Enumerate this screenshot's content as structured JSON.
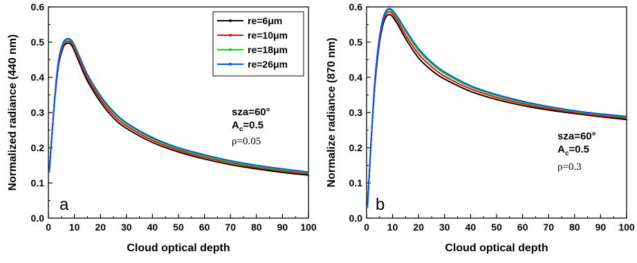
{
  "chart_data": [
    {
      "type": "line",
      "panel": "a",
      "xlabel": "Cloud optical depth",
      "ylabel": "Normalized radiance (440 nm)",
      "xlim": [
        0,
        100
      ],
      "ylim": [
        0,
        0.6
      ],
      "xticks": [
        "0",
        "10",
        "20",
        "30",
        "40",
        "50",
        "60",
        "70",
        "80",
        "90",
        "100"
      ],
      "yticks": [
        "0.0",
        "0.1",
        "0.2",
        "0.3",
        "0.4",
        "0.5",
        "0.6"
      ],
      "annotations": {
        "sza": "sza=60°",
        "ac_main": "A",
        "ac_sub": "c",
        "ac_val": "=0.5",
        "rho": "ρ=0.05"
      },
      "legend": {
        "position": "top-right",
        "show": true
      },
      "series": [
        {
          "name": "re=6μm",
          "color": "#000000",
          "x": [
            0.3,
            1,
            2,
            3,
            4,
            5,
            6,
            7,
            8,
            9,
            10,
            12,
            15,
            20,
            25,
            30,
            40,
            50,
            60,
            70,
            80,
            90,
            100
          ],
          "y": [
            0.13,
            0.2,
            0.3,
            0.38,
            0.44,
            0.47,
            0.49,
            0.496,
            0.497,
            0.49,
            0.475,
            0.44,
            0.39,
            0.33,
            0.285,
            0.255,
            0.215,
            0.188,
            0.168,
            0.152,
            0.14,
            0.13,
            0.122
          ]
        },
        {
          "name": "re=10μm",
          "color": "#ff0000",
          "x": [
            0.3,
            1,
            2,
            3,
            4,
            5,
            6,
            7,
            8,
            9,
            10,
            12,
            15,
            20,
            25,
            30,
            40,
            50,
            60,
            70,
            80,
            90,
            100
          ],
          "y": [
            0.13,
            0.2,
            0.3,
            0.385,
            0.445,
            0.477,
            0.495,
            0.501,
            0.502,
            0.496,
            0.482,
            0.448,
            0.398,
            0.338,
            0.293,
            0.262,
            0.221,
            0.193,
            0.173,
            0.157,
            0.144,
            0.134,
            0.126
          ]
        },
        {
          "name": "re=18μm",
          "color": "#00dd00",
          "x": [
            0.3,
            1,
            2,
            3,
            4,
            5,
            6,
            7,
            8,
            9,
            10,
            12,
            15,
            20,
            25,
            30,
            40,
            50,
            60,
            70,
            80,
            90,
            100
          ],
          "y": [
            0.13,
            0.2,
            0.3,
            0.39,
            0.45,
            0.482,
            0.5,
            0.506,
            0.507,
            0.501,
            0.488,
            0.455,
            0.405,
            0.345,
            0.3,
            0.268,
            0.226,
            0.197,
            0.177,
            0.16,
            0.147,
            0.137,
            0.129
          ]
        },
        {
          "name": "re=26μm",
          "color": "#0050ff",
          "x": [
            0.3,
            1,
            2,
            3,
            4,
            5,
            6,
            7,
            8,
            9,
            10,
            12,
            15,
            20,
            25,
            30,
            40,
            50,
            60,
            70,
            80,
            90,
            100
          ],
          "y": [
            0.13,
            0.2,
            0.3,
            0.39,
            0.452,
            0.485,
            0.503,
            0.509,
            0.51,
            0.504,
            0.491,
            0.458,
            0.408,
            0.348,
            0.303,
            0.271,
            0.229,
            0.2,
            0.18,
            0.163,
            0.15,
            0.14,
            0.131
          ]
        }
      ]
    },
    {
      "type": "line",
      "panel": "b",
      "xlabel": "Cloud optical depth",
      "ylabel": "Normalize radiance (870 nm)",
      "xlim": [
        0,
        100
      ],
      "ylim": [
        0,
        0.6
      ],
      "xticks": [
        "0",
        "10",
        "20",
        "30",
        "40",
        "50",
        "60",
        "70",
        "80",
        "90",
        "100"
      ],
      "yticks": [
        "0.0",
        "0.1",
        "0.2",
        "0.3",
        "0.4",
        "0.5",
        "0.6"
      ],
      "annotations": {
        "sza": "sza=60°",
        "ac_main": "A",
        "ac_sub": "c",
        "ac_val": "=0.5",
        "rho": "ρ=0.3"
      },
      "legend": {
        "show": false
      },
      "series": [
        {
          "name": "re=6μm",
          "color": "#000000",
          "x": [
            0.3,
            1,
            2,
            3,
            4,
            5,
            6,
            7,
            8,
            9,
            10,
            12,
            15,
            20,
            25,
            30,
            40,
            50,
            60,
            70,
            80,
            90,
            100
          ],
          "y": [
            0.03,
            0.12,
            0.25,
            0.36,
            0.44,
            0.5,
            0.54,
            0.565,
            0.576,
            0.578,
            0.572,
            0.55,
            0.51,
            0.455,
            0.42,
            0.395,
            0.36,
            0.337,
            0.32,
            0.307,
            0.297,
            0.288,
            0.28
          ]
        },
        {
          "name": "re=10μm",
          "color": "#ff0000",
          "x": [
            0.3,
            1,
            2,
            3,
            4,
            5,
            6,
            7,
            8,
            9,
            10,
            12,
            15,
            20,
            25,
            30,
            40,
            50,
            60,
            70,
            80,
            90,
            100
          ],
          "y": [
            0.03,
            0.12,
            0.25,
            0.365,
            0.448,
            0.507,
            0.548,
            0.573,
            0.584,
            0.586,
            0.58,
            0.559,
            0.52,
            0.466,
            0.43,
            0.403,
            0.367,
            0.343,
            0.325,
            0.311,
            0.3,
            0.291,
            0.284
          ]
        },
        {
          "name": "re=18μm",
          "color": "#00dd00",
          "x": [
            0.3,
            1,
            2,
            3,
            4,
            5,
            6,
            7,
            8,
            9,
            10,
            12,
            15,
            20,
            25,
            30,
            40,
            50,
            60,
            70,
            80,
            90,
            100
          ],
          "y": [
            0.03,
            0.12,
            0.25,
            0.37,
            0.454,
            0.513,
            0.554,
            0.579,
            0.59,
            0.592,
            0.586,
            0.567,
            0.53,
            0.476,
            0.439,
            0.411,
            0.373,
            0.348,
            0.329,
            0.315,
            0.303,
            0.294,
            0.287
          ]
        },
        {
          "name": "re=26μm",
          "color": "#0050ff",
          "x": [
            0.3,
            1,
            2,
            3,
            4,
            5,
            6,
            7,
            8,
            9,
            10,
            12,
            15,
            20,
            25,
            30,
            40,
            50,
            60,
            70,
            80,
            90,
            100
          ],
          "y": [
            0.03,
            0.12,
            0.25,
            0.372,
            0.457,
            0.516,
            0.557,
            0.582,
            0.593,
            0.595,
            0.59,
            0.571,
            0.535,
            0.481,
            0.443,
            0.415,
            0.376,
            0.351,
            0.332,
            0.317,
            0.305,
            0.296,
            0.289
          ]
        }
      ]
    }
  ]
}
